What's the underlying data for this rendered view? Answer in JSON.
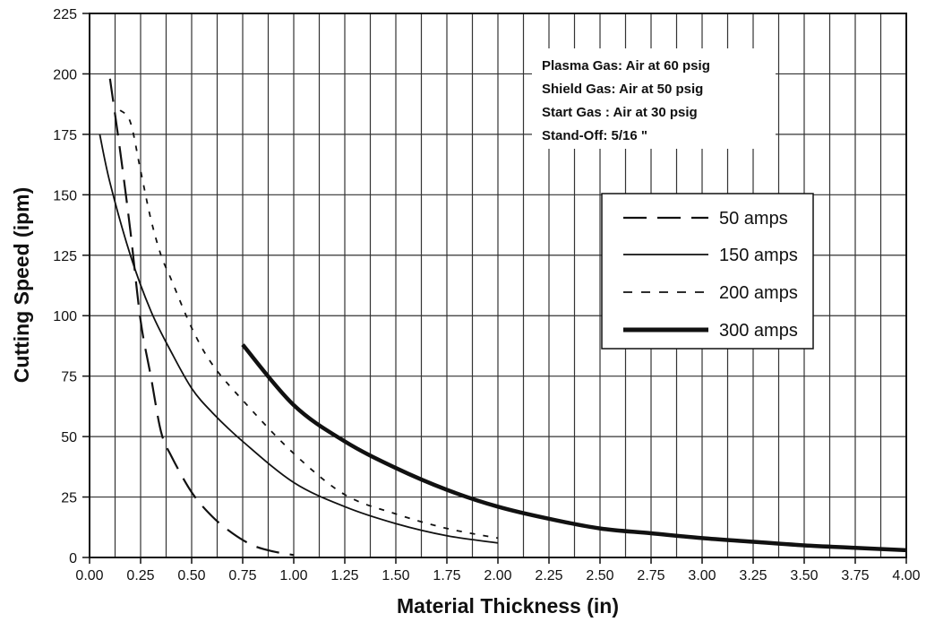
{
  "chart_data": {
    "type": "line",
    "title": "",
    "xlabel": "Material Thickness (in)",
    "ylabel": "Cutting Speed (ipm)",
    "xlim": [
      0,
      4.0
    ],
    "ylim": [
      0,
      225
    ],
    "x_ticks": [
      "0.00",
      "0.25",
      "0.50",
      "0.75",
      "1.00",
      "1.25",
      "1.50",
      "1.75",
      "2.00",
      "2.25",
      "2.50",
      "2.75",
      "3.00",
      "3.25",
      "3.50",
      "3.75",
      "4.00"
    ],
    "y_ticks": [
      "0",
      "25",
      "50",
      "75",
      "100",
      "125",
      "150",
      "175",
      "200",
      "225"
    ],
    "x_minor_step": 0.125,
    "y_step": 25,
    "grid": true,
    "legend_position": "right",
    "annotation": [
      "Plasma Gas: Air at 60 psig",
      "Shield Gas: Air at 50 psig",
      "Start Gas : Air at 30 psig",
      "Stand-Off: 5/16 \""
    ],
    "series": [
      {
        "name": "50 amps",
        "style": "long-dash",
        "x": [
          0.1,
          0.15,
          0.2,
          0.25,
          0.3,
          0.35,
          0.4,
          0.5,
          0.6,
          0.7,
          0.8,
          0.9,
          1.0
        ],
        "y": [
          198,
          168,
          135,
          98,
          75,
          52,
          42,
          27,
          17,
          10,
          5,
          2.5,
          1
        ]
      },
      {
        "name": "150 amps",
        "style": "solid",
        "x": [
          0.05,
          0.1,
          0.2,
          0.3,
          0.4,
          0.5,
          0.6,
          0.75,
          1.0,
          1.25,
          1.5,
          1.75,
          2.0
        ],
        "y": [
          175,
          155,
          125,
          102,
          85,
          70,
          60,
          48,
          31,
          21,
          14,
          9,
          6
        ]
      },
      {
        "name": "200 amps",
        "style": "short-dash",
        "x": [
          0.15,
          0.2,
          0.25,
          0.3,
          0.35,
          0.4,
          0.5,
          0.6,
          0.75,
          1.0,
          1.25,
          1.5,
          1.75,
          2.0
        ],
        "y": [
          185,
          180,
          160,
          140,
          125,
          115,
          95,
          80,
          65,
          43,
          26,
          18,
          12,
          8
        ]
      },
      {
        "name": "300 amps",
        "style": "thick",
        "x": [
          0.75,
          1.0,
          1.25,
          1.5,
          1.75,
          2.0,
          2.25,
          2.5,
          2.75,
          3.0,
          3.25,
          3.5,
          3.75,
          4.0
        ],
        "y": [
          88,
          63,
          48,
          37,
          28,
          21,
          16,
          12,
          10,
          8,
          6.5,
          5,
          4,
          3
        ]
      }
    ]
  },
  "colors": {
    "ink": "#111111",
    "grid": "#333333",
    "background": "#ffffff"
  }
}
